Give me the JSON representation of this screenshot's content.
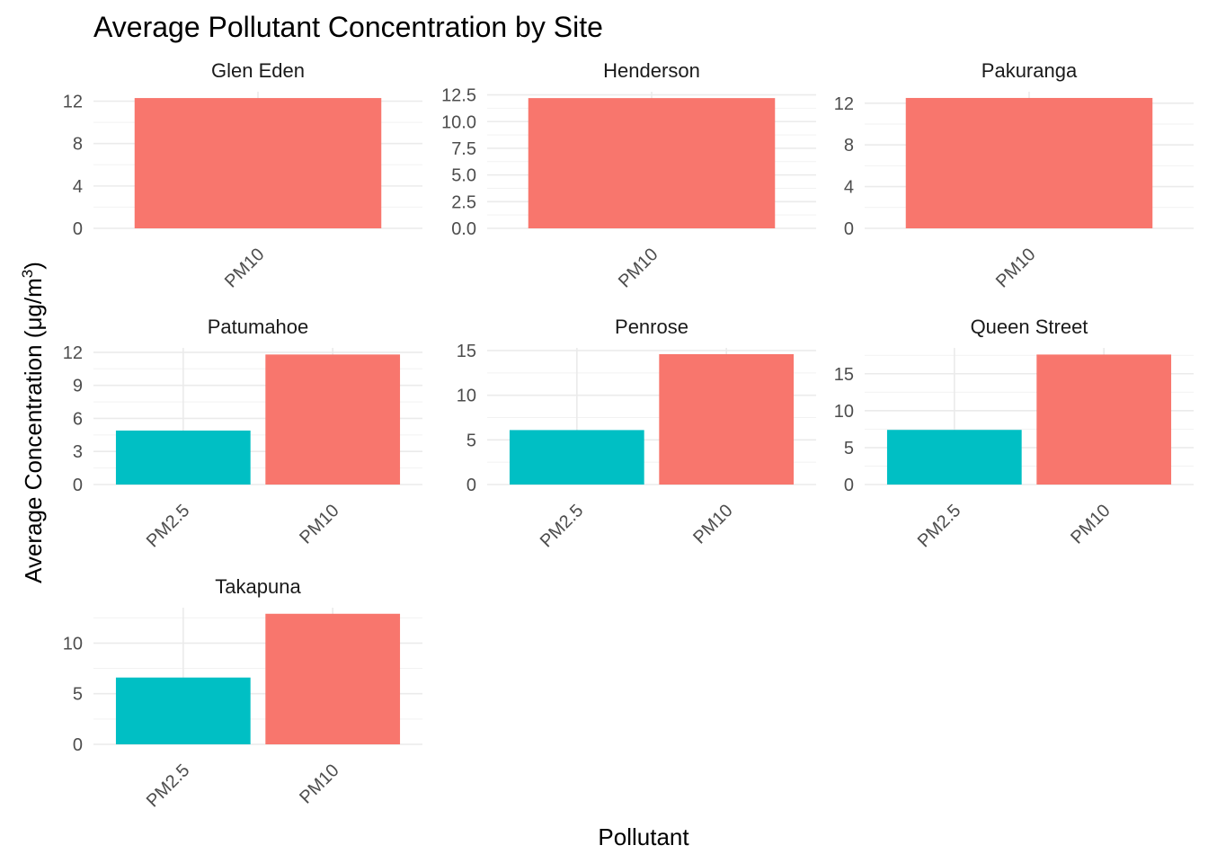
{
  "chart_data": {
    "type": "bar",
    "title": "Average Pollutant Concentration by Site",
    "xlabel": "Pollutant",
    "ylabel_text": "Average Concentration (μg/m",
    "ylabel_superscript": "3",
    "ylabel_close": ")",
    "series_colors": {
      "PM2.5": "#00BFC4",
      "PM10": "#F8766D"
    },
    "facets": [
      {
        "site": "Glen Eden",
        "categories": [
          "PM10"
        ],
        "values": [
          12.3
        ],
        "ylim": [
          0,
          12.9
        ],
        "yticks": [
          "0",
          "4",
          "8",
          "12"
        ]
      },
      {
        "site": "Henderson",
        "categories": [
          "PM10"
        ],
        "values": [
          12.2
        ],
        "ylim": [
          0,
          12.8
        ],
        "yticks": [
          "0.0",
          "2.5",
          "5.0",
          "7.5",
          "10.0",
          "12.5"
        ]
      },
      {
        "site": "Pakuranga",
        "categories": [
          "PM10"
        ],
        "values": [
          12.5
        ],
        "ylim": [
          0,
          13.1
        ],
        "yticks": [
          "0",
          "4",
          "8",
          "12"
        ]
      },
      {
        "site": "Patumahoe",
        "categories": [
          "PM2.5",
          "PM10"
        ],
        "values": [
          4.9,
          11.8
        ],
        "ylim": [
          0,
          12.4
        ],
        "yticks": [
          "0",
          "3",
          "6",
          "9",
          "12"
        ]
      },
      {
        "site": "Penrose",
        "categories": [
          "PM2.5",
          "PM10"
        ],
        "values": [
          6.1,
          14.6
        ],
        "ylim": [
          0,
          15.3
        ],
        "yticks": [
          "0",
          "5",
          "10",
          "15"
        ]
      },
      {
        "site": "Queen Street",
        "categories": [
          "PM2.5",
          "PM10"
        ],
        "values": [
          7.4,
          17.6
        ],
        "ylim": [
          0,
          18.5
        ],
        "yticks": [
          "0",
          "5",
          "10",
          "15"
        ]
      },
      {
        "site": "Takapuna",
        "categories": [
          "PM2.5",
          "PM10"
        ],
        "values": [
          6.6,
          12.9
        ],
        "ylim": [
          0,
          13.5
        ],
        "yticks": [
          "0",
          "5",
          "10"
        ]
      }
    ]
  }
}
